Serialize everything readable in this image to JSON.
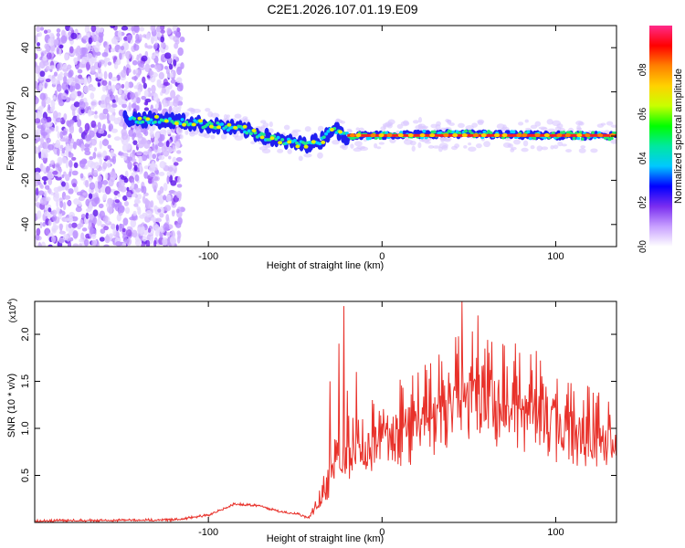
{
  "title": "C2E1.2026.107.01.19.E09",
  "colors": {
    "line": "#e8312a",
    "spectrogram_scatter": "#7a2df0",
    "spectrogram_core": "#2a2aff",
    "frame": "#000000"
  },
  "chart_data": [
    {
      "type": "heatmap",
      "name": "spectrogram",
      "xlabel": "Height of straight line (km)",
      "ylabel": "Frequency (Hz)",
      "xlim": [
        -200,
        135
      ],
      "ylim": [
        -50,
        50
      ],
      "xticks": [
        -100,
        0,
        100
      ],
      "yticks": [
        -40,
        -20,
        0,
        20,
        40
      ],
      "colorbar": {
        "label": "Normalized spectral amplitude",
        "ticks": [
          "0.0",
          "0.2",
          "0.4",
          "0.6",
          "0.8"
        ],
        "range": [
          0.0,
          1.0
        ],
        "stops": [
          "#ffffff",
          "#c8a0ff",
          "#7a2df0",
          "#0000ff",
          "#00c8ff",
          "#00e8a0",
          "#00ff00",
          "#c8ff00",
          "#ffd200",
          "#ff8000",
          "#ff0000",
          "#ff2a8a"
        ]
      },
      "band": {
        "description_points_km_hz": [
          [
            -150,
            8
          ],
          [
            -120,
            7
          ],
          [
            -100,
            5
          ],
          [
            -80,
            3
          ],
          [
            -60,
            -2
          ],
          [
            -45,
            -4
          ],
          [
            -35,
            -2
          ],
          [
            -28,
            4
          ],
          [
            -22,
            0
          ],
          [
            0,
            0.5
          ],
          [
            40,
            1
          ],
          [
            80,
            0.5
          ],
          [
            135,
            0
          ]
        ],
        "high_amplitude_from_km": -20
      }
    },
    {
      "type": "line",
      "name": "snr",
      "xlabel": "Height of straight line (km)",
      "ylabel": "SNR (10 * v/v)",
      "y_multiplier": "(x10",
      "y_exponent": "4",
      "y_close_paren": ")",
      "xlim": [
        -200,
        135
      ],
      "ylim": [
        0,
        2.35
      ],
      "xticks": [
        -100,
        0,
        100
      ],
      "yticks": [
        "0.5",
        "1.0",
        "1.5",
        "2.0"
      ],
      "envelope_km_x10e4": [
        [
          -200,
          0.02
        ],
        [
          -120,
          0.03
        ],
        [
          -100,
          0.08
        ],
        [
          -85,
          0.2
        ],
        [
          -70,
          0.18
        ],
        [
          -60,
          0.12
        ],
        [
          -50,
          0.1
        ],
        [
          -42,
          0.05
        ],
        [
          -35,
          0.3
        ],
        [
          -28,
          0.65
        ],
        [
          -22,
          0.85
        ],
        [
          -18,
          0.9
        ],
        [
          -10,
          0.95
        ],
        [
          0,
          1.05
        ],
        [
          20,
          1.2
        ],
        [
          40,
          1.45
        ],
        [
          50,
          1.55
        ],
        [
          60,
          1.55
        ],
        [
          75,
          1.45
        ],
        [
          90,
          1.35
        ],
        [
          110,
          1.15
        ],
        [
          135,
          0.95
        ]
      ],
      "spikes_km_x10e4": [
        [
          -30,
          1.5
        ],
        [
          -25,
          1.9
        ],
        [
          -22,
          2.3
        ],
        [
          -20,
          1.4
        ],
        [
          -15,
          1.6
        ],
        [
          46,
          2.35
        ],
        [
          55,
          2.2
        ]
      ]
    }
  ]
}
